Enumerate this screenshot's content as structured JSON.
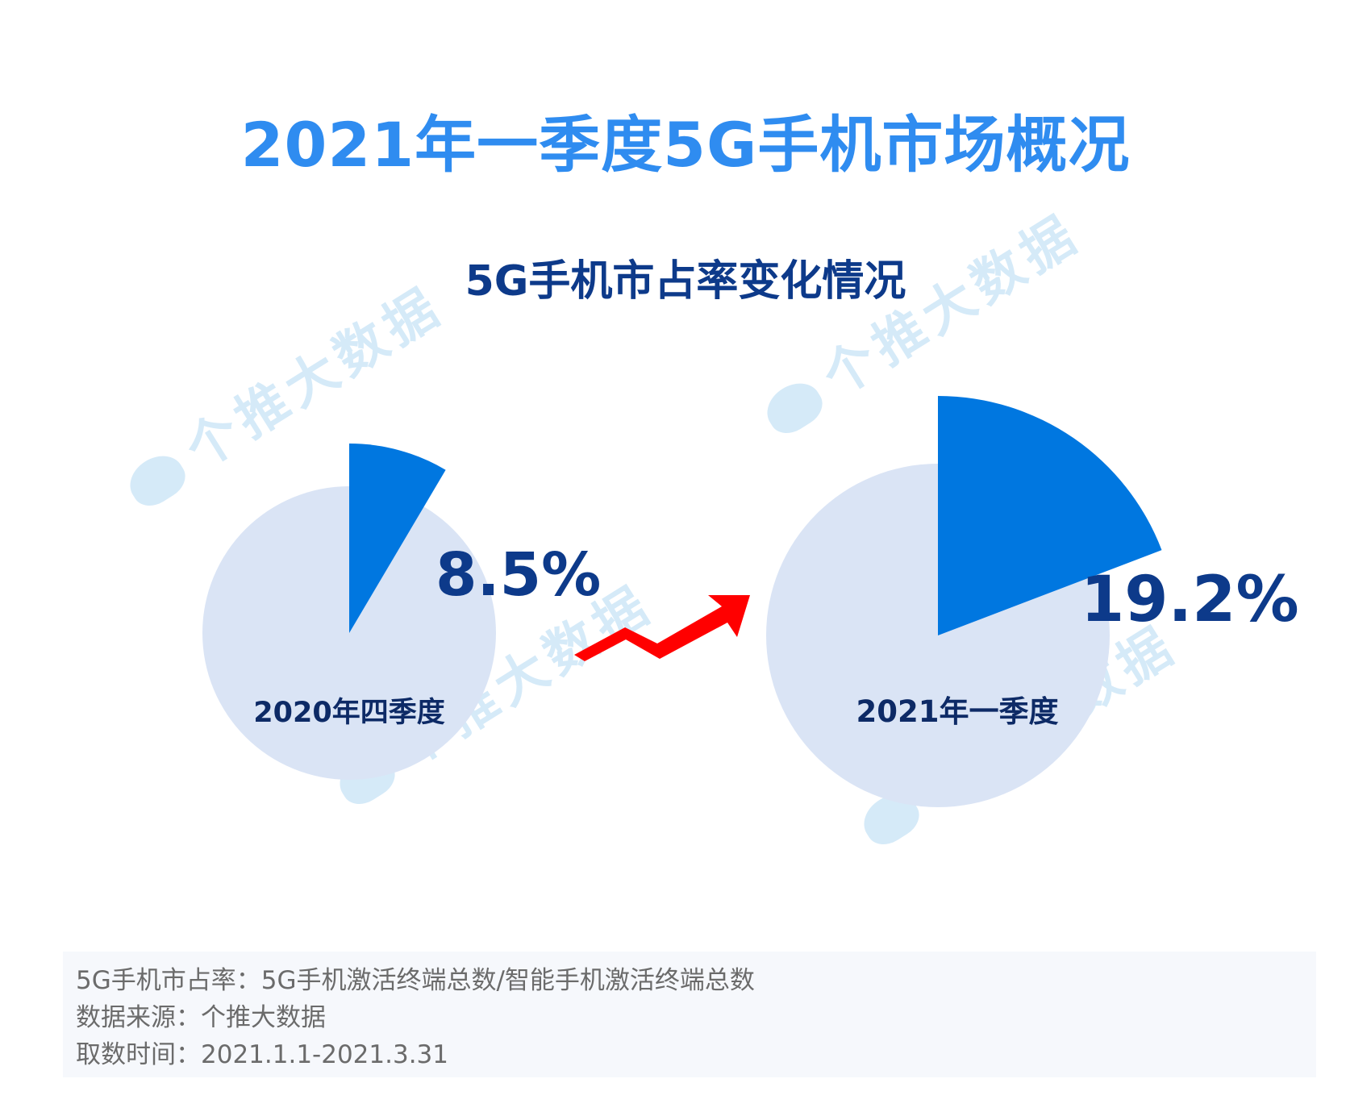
{
  "title": "2021年一季度5G手机市场概况",
  "subtitle": "5G手机市占率变化情况",
  "watermark_text": "个推大数据",
  "colors": {
    "title": "#2f8cf0",
    "subtitle": "#0d3a8a",
    "base_circle": "#dae4f5",
    "slice": "#0077e0",
    "value_label": "#0d3a8a",
    "period_label": "#0d2a66",
    "arrow": "#ff0000",
    "watermark": "#d5eaf8"
  },
  "chart_data": [
    {
      "type": "pie",
      "period": "2020年四季度",
      "value": 8.5,
      "value_label": "8.5%"
    },
    {
      "type": "pie",
      "period": "2021年一季度",
      "value": 19.2,
      "value_label": "19.2%"
    }
  ],
  "notes": [
    "5G手机市占率：5G手机激活终端总数/智能手机激活终端总数",
    "数据来源：个推大数据",
    "取数时间：2021.1.1-2021.3.31"
  ]
}
